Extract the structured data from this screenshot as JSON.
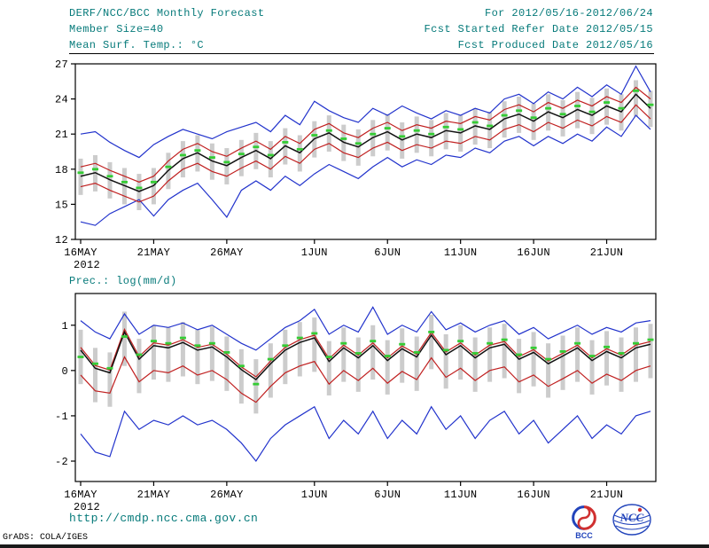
{
  "header": {
    "title": "DERF/NCC/BCC Monthly Forecast",
    "member_size": "Member Size=40",
    "temp_label": "Mean Surf. Temp.: °C",
    "for_range": "For 2012/05/16-2012/06/24",
    "fcst_started": "Fcst Started Refer Date 2012/05/15",
    "fcst_produced": "Fcst Produced Date 2012/05/16"
  },
  "labels": {
    "prec": "Prec.: log(mm/d)"
  },
  "footer": {
    "url": "http://cmdp.ncc.cma.gov.cn",
    "grads_credit": "GrADS: COLA/IGES",
    "logo_bcc": "BCC",
    "logo_ncc": "NCC"
  },
  "colors": {
    "header_text": "#067a7a",
    "axis": "#000000",
    "blue": "#2233cc",
    "red": "#c02020",
    "black": "#111111",
    "green": "#35cc35",
    "bar": "#cccccc",
    "frame": "#000000"
  },
  "chart_data": [
    {
      "name": "temperature",
      "type": "line",
      "title": "Mean Surf. Temp.: °C",
      "n_days": 40,
      "x_tick_labels": [
        "16MAY",
        "21MAY",
        "26MAY",
        "1JUN",
        "6JUN",
        "11JUN",
        "16JUN",
        "21JUN"
      ],
      "x_tick_positions": [
        0,
        5,
        10,
        16,
        21,
        26,
        31,
        36
      ],
      "x_year": "2012",
      "ylim": [
        12,
        27
      ],
      "yticks": [
        27,
        24,
        21,
        18,
        15,
        12
      ],
      "grid": false,
      "series": [
        {
          "name": "ensemble_max",
          "color": "blue",
          "values": [
            21.0,
            21.2,
            20.3,
            19.6,
            19.0,
            20.1,
            20.8,
            21.4,
            21.0,
            20.6,
            21.2,
            21.6,
            22.0,
            21.2,
            22.6,
            21.8,
            23.8,
            23.0,
            22.4,
            22.0,
            23.2,
            22.6,
            23.4,
            22.8,
            22.3,
            23.0,
            22.6,
            23.2,
            22.8,
            24.0,
            24.4,
            23.6,
            24.6,
            24.0,
            25.0,
            24.2,
            25.2,
            24.4,
            26.8,
            24.6
          ]
        },
        {
          "name": "ensemble_min",
          "color": "blue",
          "values": [
            13.5,
            13.2,
            14.2,
            14.8,
            15.4,
            14.0,
            15.4,
            16.2,
            16.8,
            15.4,
            13.9,
            16.2,
            17.0,
            16.2,
            17.4,
            16.6,
            17.6,
            18.4,
            17.8,
            17.2,
            18.2,
            19.0,
            18.2,
            18.8,
            18.4,
            19.2,
            19.0,
            19.8,
            19.4,
            20.4,
            20.8,
            20.0,
            20.8,
            20.2,
            21.0,
            20.4,
            21.6,
            20.8,
            22.6,
            21.4
          ]
        },
        {
          "name": "upper_envelope",
          "color": "red",
          "values": [
            18.2,
            18.5,
            17.9,
            17.4,
            16.9,
            17.4,
            18.7,
            19.7,
            20.2,
            19.5,
            19.1,
            19.8,
            20.4,
            19.7,
            20.8,
            20.2,
            21.4,
            21.9,
            21.1,
            20.7,
            21.5,
            22.0,
            21.3,
            21.8,
            21.5,
            22.1,
            21.9,
            22.5,
            22.2,
            23.1,
            23.5,
            22.9,
            23.7,
            23.2,
            23.9,
            23.4,
            24.2,
            23.7,
            25.0,
            24.0
          ]
        },
        {
          "name": "lower_envelope",
          "color": "red",
          "values": [
            16.5,
            16.8,
            16.2,
            15.7,
            15.2,
            15.7,
            17.0,
            18.0,
            18.5,
            17.8,
            17.4,
            18.1,
            18.7,
            18.0,
            19.1,
            18.5,
            19.7,
            20.2,
            19.4,
            19.0,
            19.8,
            20.3,
            19.6,
            20.1,
            19.8,
            20.4,
            20.2,
            20.8,
            20.5,
            21.4,
            21.8,
            21.2,
            22.0,
            21.5,
            22.2,
            21.7,
            22.5,
            22.0,
            23.5,
            22.3
          ]
        },
        {
          "name": "ensemble_mean",
          "color": "black",
          "values": [
            17.4,
            17.7,
            17.1,
            16.6,
            16.1,
            16.6,
            17.9,
            18.9,
            19.4,
            18.7,
            18.3,
            19.0,
            19.6,
            18.9,
            20.0,
            19.4,
            20.6,
            21.1,
            20.3,
            19.9,
            20.7,
            21.2,
            20.5,
            21.0,
            20.7,
            21.3,
            21.1,
            21.7,
            21.4,
            22.3,
            22.7,
            22.1,
            22.9,
            22.4,
            23.1,
            22.6,
            23.4,
            22.9,
            24.4,
            23.2
          ]
        },
        {
          "name": "ensemble_median_markers",
          "color": "green",
          "marker": "dash",
          "values": [
            17.7,
            18.0,
            17.4,
            16.9,
            16.4,
            16.9,
            18.2,
            19.2,
            19.6,
            19.0,
            18.6,
            19.3,
            19.9,
            19.2,
            20.3,
            19.7,
            20.9,
            21.3,
            20.6,
            20.2,
            21.0,
            21.5,
            20.8,
            21.3,
            21.0,
            21.6,
            21.4,
            22.0,
            21.7,
            22.6,
            23.0,
            22.4,
            23.2,
            22.7,
            23.4,
            22.9,
            23.7,
            23.2,
            24.7,
            23.5
          ]
        }
      ],
      "spread_bars": {
        "upper": [
          18.9,
          19.2,
          18.6,
          18.1,
          17.6,
          18.1,
          19.4,
          20.4,
          20.9,
          20.2,
          19.8,
          20.5,
          21.1,
          20.4,
          21.5,
          20.9,
          22.1,
          22.6,
          21.8,
          21.4,
          22.2,
          22.7,
          22.0,
          22.5,
          22.2,
          22.8,
          22.6,
          23.2,
          22.9,
          23.8,
          24.2,
          23.6,
          24.4,
          23.9,
          24.6,
          24.1,
          24.9,
          24.4,
          25.6,
          24.7
        ],
        "lower": [
          15.8,
          16.1,
          15.5,
          15.0,
          14.5,
          15.0,
          16.3,
          17.3,
          17.8,
          17.1,
          16.7,
          17.4,
          18.0,
          17.3,
          18.4,
          17.8,
          19.0,
          19.5,
          18.7,
          18.3,
          19.1,
          19.6,
          18.9,
          19.4,
          19.1,
          19.7,
          19.5,
          20.1,
          19.8,
          20.7,
          21.1,
          20.5,
          21.3,
          20.8,
          21.5,
          21.0,
          21.8,
          21.3,
          22.5,
          21.6
        ]
      }
    },
    {
      "name": "precipitation",
      "type": "line",
      "title": "Prec.: log(mm/d)",
      "n_days": 40,
      "x_tick_labels": [
        "16MAY",
        "21MAY",
        "26MAY",
        "1JUN",
        "6JUN",
        "11JUN",
        "16JUN",
        "21JUN"
      ],
      "x_tick_positions": [
        0,
        5,
        10,
        16,
        21,
        26,
        31,
        36
      ],
      "x_year": "2012",
      "ylim": [
        -2.45,
        1.7
      ],
      "yticks": [
        1,
        0,
        -1,
        -2
      ],
      "grid": false,
      "series": [
        {
          "name": "ensemble_max",
          "color": "blue",
          "values": [
            1.1,
            0.85,
            0.7,
            1.25,
            0.8,
            1.0,
            0.95,
            1.05,
            0.9,
            1.0,
            0.8,
            0.6,
            0.45,
            0.7,
            0.95,
            1.1,
            1.35,
            0.8,
            1.0,
            0.85,
            1.4,
            0.8,
            1.0,
            0.85,
            1.3,
            0.9,
            1.05,
            0.85,
            1.0,
            1.1,
            0.8,
            0.95,
            0.7,
            0.85,
            1.0,
            0.8,
            0.95,
            0.85,
            1.05,
            1.1
          ]
        },
        {
          "name": "ensemble_min",
          "color": "blue",
          "values": [
            -1.4,
            -1.8,
            -1.9,
            -0.9,
            -1.3,
            -1.1,
            -1.2,
            -1.0,
            -1.2,
            -1.1,
            -1.3,
            -1.6,
            -2.0,
            -1.5,
            -1.2,
            -1.0,
            -0.8,
            -1.5,
            -1.1,
            -1.4,
            -0.9,
            -1.5,
            -1.1,
            -1.4,
            -0.8,
            -1.3,
            -1.0,
            -1.5,
            -1.1,
            -0.9,
            -1.4,
            -1.1,
            -1.6,
            -1.3,
            -1.0,
            -1.5,
            -1.2,
            -1.4,
            -1.0,
            -0.9
          ]
        },
        {
          "name": "upper_envelope",
          "color": "red",
          "values": [
            0.51,
            0.11,
            0.01,
            0.91,
            0.31,
            0.61,
            0.56,
            0.68,
            0.51,
            0.58,
            0.36,
            0.08,
            -0.14,
            0.21,
            0.51,
            0.68,
            0.78,
            0.26,
            0.56,
            0.34,
            0.61,
            0.28,
            0.54,
            0.36,
            0.84,
            0.41,
            0.61,
            0.34,
            0.56,
            0.64,
            0.31,
            0.46,
            0.21,
            0.38,
            0.56,
            0.28,
            0.48,
            0.34,
            0.56,
            0.64
          ]
        },
        {
          "name": "lower_envelope",
          "color": "red",
          "values": [
            -0.1,
            -0.45,
            -0.5,
            0.3,
            -0.25,
            0.0,
            -0.05,
            0.1,
            -0.1,
            0.0,
            -0.2,
            -0.5,
            -0.7,
            -0.35,
            -0.05,
            0.1,
            0.2,
            -0.3,
            0.0,
            -0.22,
            0.05,
            -0.28,
            -0.02,
            -0.2,
            0.28,
            -0.15,
            0.05,
            -0.22,
            0.0,
            0.08,
            -0.25,
            -0.1,
            -0.35,
            -0.18,
            0.0,
            -0.28,
            -0.08,
            -0.22,
            0.0,
            0.1
          ]
        },
        {
          "name": "ensemble_mean",
          "color": "black",
          "values": [
            0.45,
            0.05,
            -0.05,
            0.85,
            0.25,
            0.55,
            0.5,
            0.62,
            0.45,
            0.52,
            0.3,
            0.02,
            -0.2,
            0.15,
            0.45,
            0.62,
            0.72,
            0.2,
            0.5,
            0.28,
            0.55,
            0.22,
            0.48,
            0.3,
            0.78,
            0.35,
            0.55,
            0.28,
            0.5,
            0.58,
            0.25,
            0.4,
            0.15,
            0.32,
            0.5,
            0.22,
            0.42,
            0.28,
            0.5,
            0.58
          ]
        },
        {
          "name": "ensemble_median_markers",
          "color": "green",
          "marker": "dash",
          "values": [
            0.3,
            0.15,
            0.05,
            0.75,
            0.35,
            0.65,
            0.6,
            0.72,
            0.55,
            0.6,
            0.4,
            0.1,
            -0.3,
            0.25,
            0.55,
            0.72,
            0.82,
            0.3,
            0.6,
            0.38,
            0.65,
            0.32,
            0.58,
            0.4,
            0.85,
            0.45,
            0.65,
            0.38,
            0.6,
            0.68,
            0.35,
            0.5,
            0.25,
            0.42,
            0.6,
            0.32,
            0.52,
            0.38,
            0.6,
            0.68
          ]
        }
      ],
      "spread_bars": {
        "upper": [
          0.9,
          0.5,
          0.4,
          1.3,
          0.7,
          1.0,
          0.95,
          1.07,
          0.9,
          0.97,
          0.75,
          0.47,
          0.25,
          0.6,
          0.9,
          1.07,
          1.17,
          0.65,
          0.95,
          0.73,
          1.0,
          0.67,
          0.93,
          0.75,
          1.23,
          0.8,
          1.0,
          0.73,
          0.95,
          1.03,
          0.7,
          0.85,
          0.6,
          0.77,
          0.95,
          0.67,
          0.87,
          0.73,
          0.95,
          1.03
        ],
        "lower": [
          -0.3,
          -0.7,
          -0.8,
          0.1,
          -0.5,
          -0.2,
          -0.25,
          -0.13,
          -0.3,
          -0.23,
          -0.45,
          -0.73,
          -0.95,
          -0.6,
          -0.3,
          -0.13,
          -0.03,
          -0.55,
          -0.25,
          -0.47,
          -0.2,
          -0.53,
          -0.27,
          -0.45,
          0.03,
          -0.4,
          -0.2,
          -0.47,
          -0.25,
          -0.17,
          -0.5,
          -0.35,
          -0.6,
          -0.43,
          -0.25,
          -0.53,
          -0.33,
          -0.47,
          -0.25,
          -0.17
        ]
      }
    }
  ]
}
